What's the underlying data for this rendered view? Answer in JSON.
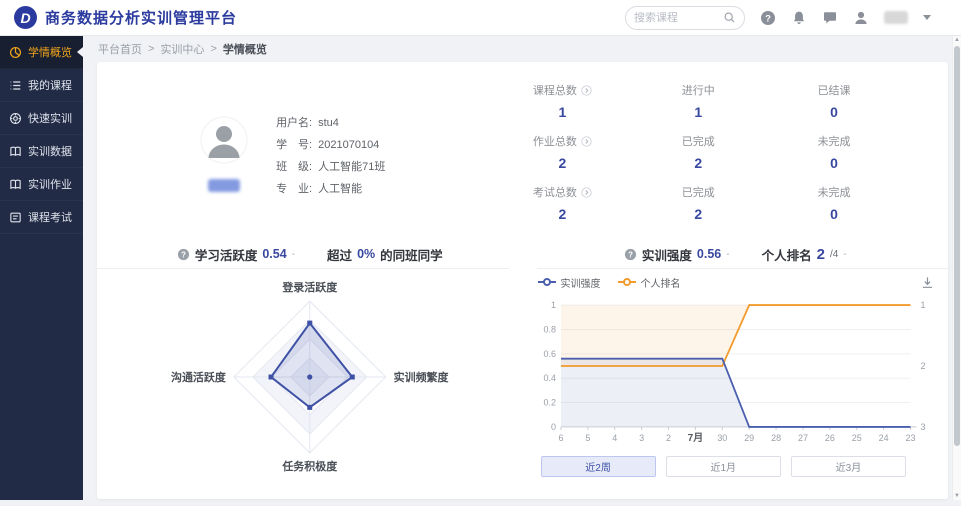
{
  "header": {
    "logo_letter": "D",
    "title": "商务数据分析实训管理平台",
    "search_placeholder": "搜索课程",
    "icons": [
      "search-icon",
      "help-icon",
      "bell-icon",
      "message-icon",
      "user-avatar-icon",
      "chevron-down-icon"
    ]
  },
  "sidebar": {
    "items": [
      {
        "label": "学情概览",
        "icon": "pie-chart-icon",
        "active": true
      },
      {
        "label": "我的课程",
        "icon": "course-list-icon",
        "active": false
      },
      {
        "label": "快速实训",
        "icon": "quick-training-icon",
        "active": false
      },
      {
        "label": "实训数据",
        "icon": "training-data-icon",
        "active": false
      },
      {
        "label": "实训作业",
        "icon": "training-homework-icon",
        "active": false
      },
      {
        "label": "课程考试",
        "icon": "course-exam-icon",
        "active": false
      }
    ]
  },
  "breadcrumb": {
    "items": [
      "平台首页",
      "实训中心",
      "学情概览"
    ],
    "separator": ">"
  },
  "profile": {
    "avatar": "person-icon",
    "fields": [
      {
        "label": "用户名:",
        "value": "stu4"
      },
      {
        "label": "学　号:",
        "value": "2021070104"
      },
      {
        "label": "班　级:",
        "value": "人工智能71班"
      },
      {
        "label": "专　业:",
        "value": "人工智能"
      }
    ]
  },
  "stats": {
    "cells": [
      {
        "label": "课程总数",
        "value": "1",
        "link": true
      },
      {
        "label": "进行中",
        "value": "1"
      },
      {
        "label": "已结课",
        "value": "0"
      },
      {
        "label": "作业总数",
        "value": "2",
        "link": true
      },
      {
        "label": "已完成",
        "value": "2"
      },
      {
        "label": "未完成",
        "value": "0"
      },
      {
        "label": "考试总数",
        "value": "2",
        "link": true
      },
      {
        "label": "已完成",
        "value": "2"
      },
      {
        "label": "未完成",
        "value": "0"
      }
    ]
  },
  "activity_panel": {
    "title": "学习活跃度",
    "value": "0.54",
    "trend": "-",
    "compare_prefix": "超过",
    "compare_value": "0%",
    "compare_suffix": "的同班同学",
    "chart_data": {
      "type": "radar",
      "max": 1,
      "indicators": [
        "登录活跃度",
        "实训频繁度",
        "任务积极度",
        "沟通活跃度"
      ],
      "values": [
        0.71,
        0.56,
        0.4,
        0.51
      ]
    }
  },
  "intensity_panel": {
    "title": "实训强度",
    "value": "0.56",
    "trend": "-",
    "rank_label": "个人排名",
    "rank_value": "2",
    "rank_total": "/4",
    "rank_trend": "-",
    "chart_data": {
      "type": "line",
      "x": [
        "6",
        "5",
        "4",
        "3",
        "2",
        "7月",
        "30",
        "29",
        "28",
        "27",
        "26",
        "25",
        "24",
        "23"
      ],
      "bold_x_label": "7月",
      "legend": [
        "实训强度",
        "个人排名"
      ],
      "series": [
        {
          "name": "实训强度",
          "color": "#4a5fae",
          "axis": "left",
          "values": [
            0.56,
            0.56,
            0.56,
            0.56,
            0.56,
            0.56,
            0.56,
            0,
            0,
            0,
            0,
            0,
            0,
            0
          ]
        },
        {
          "name": "个人排名",
          "color": "#f39b2d",
          "axis": "right",
          "values": [
            2,
            2,
            2,
            2,
            2,
            2,
            2,
            1,
            1,
            1,
            1,
            1,
            1,
            1
          ]
        }
      ],
      "left_axis": {
        "min": 0,
        "max": 1,
        "ticks": [
          "0",
          "0.2",
          "0.4",
          "0.6",
          "0.8",
          "1"
        ]
      },
      "right_axis": {
        "min": 1,
        "max": 3,
        "ticks": [
          "1",
          "2",
          "3"
        ],
        "top_value": 1
      },
      "grid": true,
      "legend_position": "top-left"
    },
    "range_buttons": [
      {
        "label": "近2周",
        "active": true
      },
      {
        "label": "近1月",
        "active": false
      },
      {
        "label": "近3月",
        "active": false
      }
    ]
  },
  "colors": {
    "brand_blue": "#2b3a9e",
    "accent_number_blue": "#3848a0",
    "sidebar_bg": "#212b45",
    "sidebar_active": "#f2a51a",
    "line_blue": "#4a5fae",
    "line_orange": "#f39b2d",
    "page_bg": "#f0f2f5"
  }
}
